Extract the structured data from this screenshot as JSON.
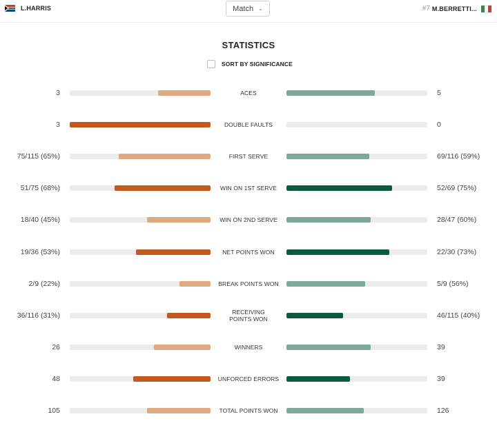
{
  "header": {
    "player_left": {
      "name": "L.HARRIS",
      "flag": "south-africa-flag"
    },
    "player_right": {
      "seed": "#7",
      "name": "M.BERRETTI...",
      "flag": "italy-flag"
    },
    "match_select": {
      "value": "Match"
    }
  },
  "title": "STATISTICS",
  "sort": {
    "label": "SORT BY SIGNIFICANCE",
    "checked": false
  },
  "colors": {
    "left_strong": "#c25a1f",
    "left_light": "#dfa983",
    "right_strong": "#0e5a3f",
    "right_light": "#7ea898",
    "track": "#ececec"
  },
  "stats": [
    {
      "label": "ACES",
      "left": "3",
      "right": "5",
      "left_frac": 0.375,
      "right_frac": 0.625,
      "leader": "right"
    },
    {
      "label": "DOUBLE FAULTS",
      "left": "3",
      "right": "0",
      "left_frac": 1.0,
      "right_frac": 0.0,
      "leader": "left"
    },
    {
      "label": "FIRST SERVE",
      "left": "75/115 (65%)",
      "right": "69/116 (59%)",
      "left_frac": 0.65,
      "right_frac": 0.59,
      "leader": "none"
    },
    {
      "label": "WIN ON 1ST SERVE",
      "left": "51/75 (68%)",
      "right": "52/69 (75%)",
      "left_frac": 0.68,
      "right_frac": 0.75,
      "leader": "both"
    },
    {
      "label": "WIN ON 2ND SERVE",
      "left": "18/40 (45%)",
      "right": "28/47 (60%)",
      "left_frac": 0.45,
      "right_frac": 0.6,
      "leader": "none"
    },
    {
      "label": "NET POINTS WON",
      "left": "19/36 (53%)",
      "right": "22/30 (73%)",
      "left_frac": 0.53,
      "right_frac": 0.73,
      "leader": "both"
    },
    {
      "label": "BREAK POINTS WON",
      "left": "2/9 (22%)",
      "right": "5/9 (56%)",
      "left_frac": 0.22,
      "right_frac": 0.56,
      "leader": "none"
    },
    {
      "label": "RECEIVING POINTS WON",
      "left": "36/116 (31%)",
      "right": "46/115 (40%)",
      "left_frac": 0.31,
      "right_frac": 0.4,
      "leader": "both"
    },
    {
      "label": "WINNERS",
      "left": "26",
      "right": "39",
      "left_frac": 0.4,
      "right_frac": 0.6,
      "leader": "none"
    },
    {
      "label": "UNFORCED ERRORS",
      "left": "48",
      "right": "39",
      "left_frac": 0.55,
      "right_frac": 0.45,
      "leader": "both"
    },
    {
      "label": "TOTAL POINTS WON",
      "left": "105",
      "right": "126",
      "left_frac": 0.45,
      "right_frac": 0.55,
      "leader": "none"
    }
  ]
}
